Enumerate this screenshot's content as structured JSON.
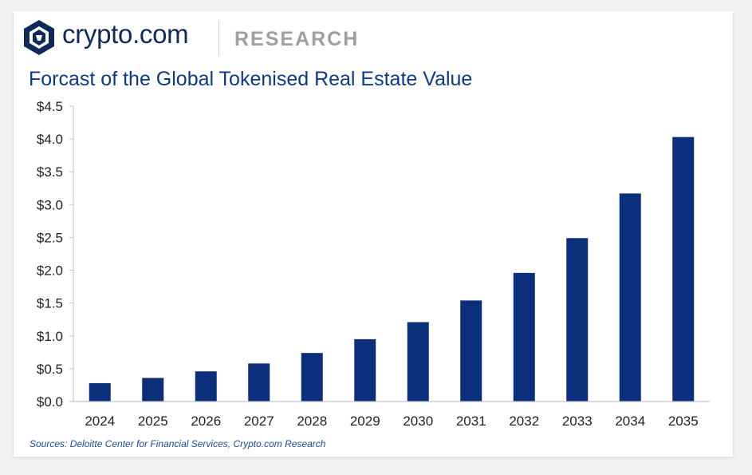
{
  "header": {
    "brand_name": "crypto.com",
    "brand_suffix": "RESEARCH",
    "logo_icon": "crypto-com-lion-shield-icon"
  },
  "colors": {
    "bar": "#0b2f7a",
    "title": "#0b3a88",
    "axis": "#bfc3c9",
    "tick_text": "#222222"
  },
  "chart_data": {
    "type": "bar",
    "title": "Forcast of the Global Tokenised Real Estate Value",
    "xlabel": "",
    "ylabel": "",
    "categories": [
      "2024",
      "2025",
      "2026",
      "2027",
      "2028",
      "2029",
      "2030",
      "2031",
      "2032",
      "2033",
      "2034",
      "2035"
    ],
    "values": [
      0.28,
      0.36,
      0.46,
      0.58,
      0.74,
      0.95,
      1.21,
      1.54,
      1.96,
      2.49,
      3.17,
      4.03
    ],
    "ylim": [
      0,
      4.5
    ],
    "yticks": [
      0.0,
      0.5,
      1.0,
      1.5,
      2.0,
      2.5,
      3.0,
      3.5,
      4.0,
      4.5
    ],
    "ytick_labels": [
      "$0.0",
      "$0.5",
      "$1.0",
      "$1.5",
      "$2.0",
      "$2.5",
      "$3.0",
      "$3.5",
      "$4.0",
      "$4.5"
    ],
    "grid": false,
    "legend": "none"
  },
  "footer": {
    "source": "Sources: Deloitte Center for Financial Services, Crypto.com Research"
  }
}
